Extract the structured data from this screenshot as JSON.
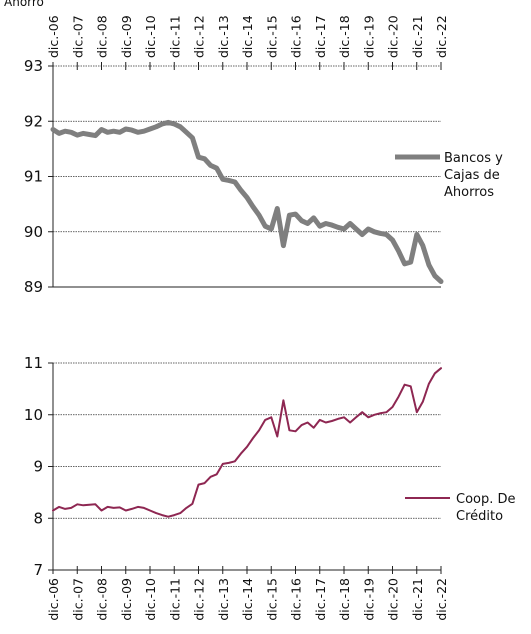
{
  "chart_data": [
    {
      "type": "line",
      "title": "",
      "header_text": "Ahorro",
      "categories": [
        "dic.-06",
        "dic.-07",
        "dic.-08",
        "dic.-09",
        "dic.-10",
        "dic.-11",
        "dic.-12",
        "dic.-13",
        "dic.-14",
        "dic.-15",
        "dic.-16",
        "dic.-17",
        "dic.-18",
        "dic.-19",
        "dic.-20",
        "dic.-21",
        "dic.-22"
      ],
      "ylim": [
        89,
        93
      ],
      "yticks": [
        93,
        92,
        91,
        90,
        89
      ],
      "grid": true,
      "legend_position": "right",
      "series": [
        {
          "name": "Bancos y Cajas de Ahorros",
          "color": "#7f7f7f",
          "x": [
            2006.92,
            2007.17,
            2007.42,
            2007.67,
            2007.92,
            2008.17,
            2008.42,
            2008.67,
            2008.92,
            2009.17,
            2009.42,
            2009.67,
            2009.92,
            2010.17,
            2010.42,
            2010.67,
            2010.92,
            2011.17,
            2011.42,
            2011.67,
            2011.92,
            2012.17,
            2012.42,
            2012.67,
            2012.92,
            2013.17,
            2013.42,
            2013.67,
            2013.92,
            2014.17,
            2014.42,
            2014.67,
            2014.92,
            2015.17,
            2015.42,
            2015.67,
            2015.92,
            2016.17,
            2016.42,
            2016.67,
            2016.92,
            2017.17,
            2017.42,
            2017.67,
            2017.92,
            2018.17,
            2018.42,
            2018.67,
            2018.92,
            2019.17,
            2019.42,
            2019.67,
            2019.92,
            2020.17,
            2020.42,
            2020.67,
            2020.92,
            2021.17,
            2021.42,
            2021.67,
            2021.92,
            2022.17,
            2022.42,
            2022.67,
            2022.92
          ],
          "values": [
            91.85,
            91.78,
            91.82,
            91.8,
            91.75,
            91.78,
            91.76,
            91.74,
            91.85,
            91.8,
            91.82,
            91.8,
            91.86,
            91.84,
            91.8,
            91.82,
            91.86,
            91.9,
            91.95,
            91.98,
            91.95,
            91.9,
            91.8,
            91.7,
            91.35,
            91.32,
            91.2,
            91.15,
            90.95,
            90.93,
            90.9,
            90.75,
            90.62,
            90.45,
            90.3,
            90.1,
            90.05,
            90.42,
            89.75,
            90.3,
            90.32,
            90.2,
            90.15,
            90.25,
            90.1,
            90.15,
            90.12,
            90.08,
            90.05,
            90.15,
            90.05,
            89.95,
            90.05,
            90.0,
            89.97,
            89.95,
            89.85,
            89.65,
            89.42,
            89.45,
            89.95,
            89.75,
            89.4,
            89.2,
            89.1
          ]
        }
      ]
    },
    {
      "type": "line",
      "title": "",
      "categories": [
        "dic.-06",
        "dic.-07",
        "dic.-08",
        "dic.-09",
        "dic.-10",
        "dic.-11",
        "dic.-12",
        "dic.-13",
        "dic.-14",
        "dic.-15",
        "dic.-16",
        "dic.-17",
        "dic.-18",
        "dic.-19",
        "dic.-20",
        "dic.-21",
        "dic.-22"
      ],
      "ylim": [
        7,
        11
      ],
      "yticks": [
        11,
        10,
        9,
        8,
        7
      ],
      "grid": true,
      "legend_position": "right",
      "series": [
        {
          "name": "Coop. De Crédito",
          "color": "#8e2752",
          "x": [
            2006.92,
            2007.17,
            2007.42,
            2007.67,
            2007.92,
            2008.17,
            2008.42,
            2008.67,
            2008.92,
            2009.17,
            2009.42,
            2009.67,
            2009.92,
            2010.17,
            2010.42,
            2010.67,
            2010.92,
            2011.17,
            2011.42,
            2011.67,
            2011.92,
            2012.17,
            2012.42,
            2012.67,
            2012.92,
            2013.17,
            2013.42,
            2013.67,
            2013.92,
            2014.17,
            2014.42,
            2014.67,
            2014.92,
            2015.17,
            2015.42,
            2015.67,
            2015.92,
            2016.17,
            2016.42,
            2016.67,
            2016.92,
            2017.17,
            2017.42,
            2017.67,
            2017.92,
            2018.17,
            2018.42,
            2018.67,
            2018.92,
            2019.17,
            2019.42,
            2019.67,
            2019.92,
            2020.17,
            2020.42,
            2020.67,
            2020.92,
            2021.17,
            2021.42,
            2021.67,
            2021.92,
            2022.17,
            2022.42,
            2022.67,
            2022.92
          ],
          "values": [
            8.15,
            8.22,
            8.18,
            8.2,
            8.27,
            8.25,
            8.26,
            8.27,
            8.15,
            8.22,
            8.2,
            8.21,
            8.15,
            8.18,
            8.22,
            8.2,
            8.15,
            8.1,
            8.06,
            8.03,
            8.06,
            8.1,
            8.2,
            8.28,
            8.65,
            8.68,
            8.8,
            8.85,
            9.05,
            9.07,
            9.1,
            9.25,
            9.38,
            9.55,
            9.7,
            9.9,
            9.95,
            9.58,
            10.28,
            9.7,
            9.68,
            9.8,
            9.85,
            9.75,
            9.9,
            9.85,
            9.88,
            9.92,
            9.95,
            9.85,
            9.95,
            10.05,
            9.95,
            10.0,
            10.03,
            10.05,
            10.15,
            10.35,
            10.58,
            10.55,
            10.05,
            10.25,
            10.6,
            10.8,
            10.9
          ]
        }
      ]
    }
  ]
}
